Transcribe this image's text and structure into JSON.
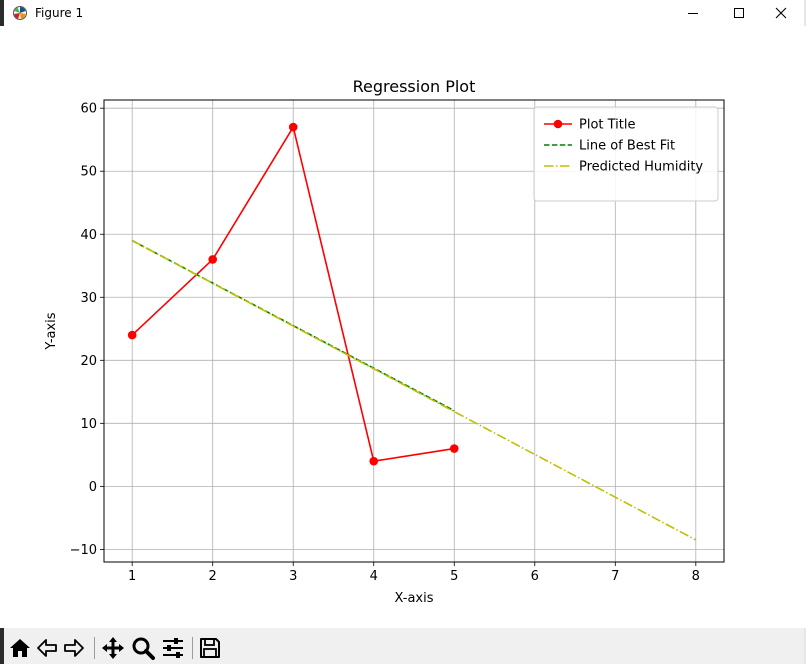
{
  "window": {
    "title": "Figure 1"
  },
  "toolbar": {
    "buttons": [
      "home-icon",
      "back-icon",
      "forward-icon",
      "pan-icon",
      "zoom-icon",
      "configure-subplots-icon",
      "save-icon"
    ]
  },
  "chart_data": {
    "type": "line",
    "title": "Regression Plot",
    "xlabel": "X-axis",
    "ylabel": "Y-axis",
    "xlim": [
      0.65,
      8.35
    ],
    "ylim": [
      -12,
      61.3
    ],
    "xticks": [
      1,
      2,
      3,
      4,
      5,
      6,
      7,
      8
    ],
    "yticks": [
      -10,
      0,
      10,
      20,
      30,
      40,
      50,
      60
    ],
    "grid": true,
    "legend_position": "top-right",
    "series": [
      {
        "name": "Plot Title",
        "x": [
          1,
          2,
          3,
          4,
          5
        ],
        "y": [
          24,
          36,
          57,
          4,
          6
        ],
        "color": "#ff0000",
        "linestyle": "solid",
        "marker": "circle"
      },
      {
        "name": "Line of Best Fit",
        "x": [
          1,
          5
        ],
        "y": [
          39,
          12
        ],
        "color": "#008000",
        "linestyle": "dashed",
        "marker": "none"
      },
      {
        "name": "Predicted Humidity",
        "x": [
          1,
          8
        ],
        "y": [
          39,
          -8.5
        ],
        "color": "#bfbf00",
        "linestyle": "dashdot",
        "marker": "none"
      }
    ]
  }
}
